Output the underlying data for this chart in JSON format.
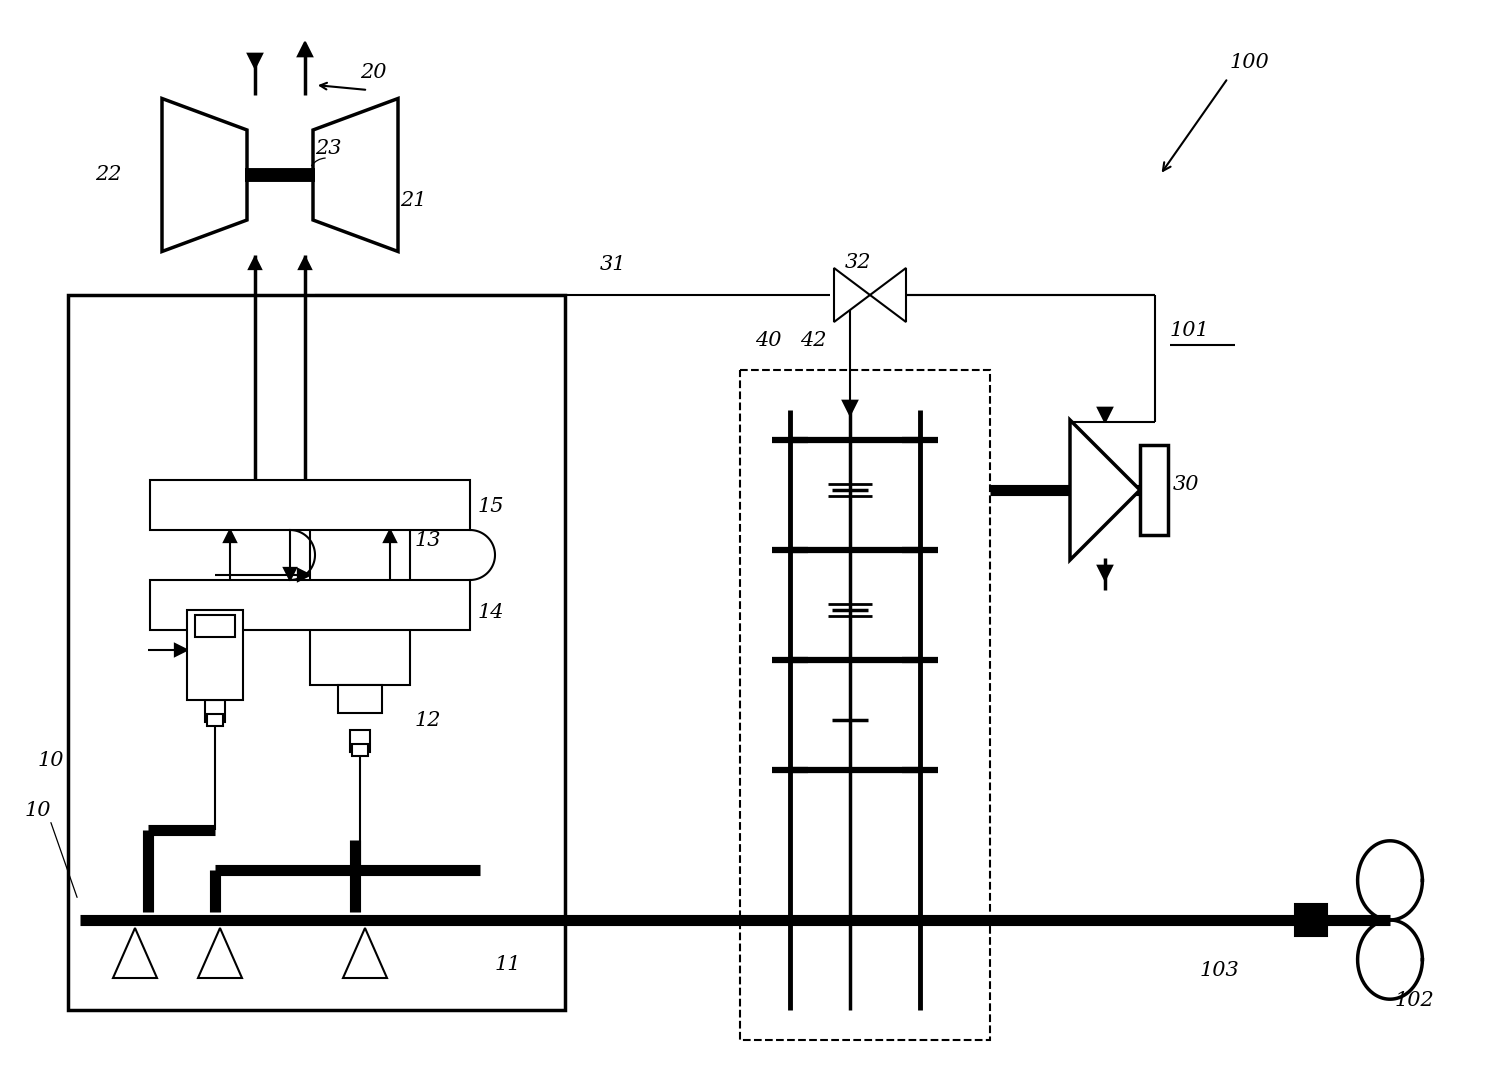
{
  "bg_color": "#ffffff",
  "lc": "#000000",
  "lw1": 1.5,
  "lw2": 2.5,
  "lw3": 8,
  "fig_w": 14.86,
  "fig_h": 10.71
}
